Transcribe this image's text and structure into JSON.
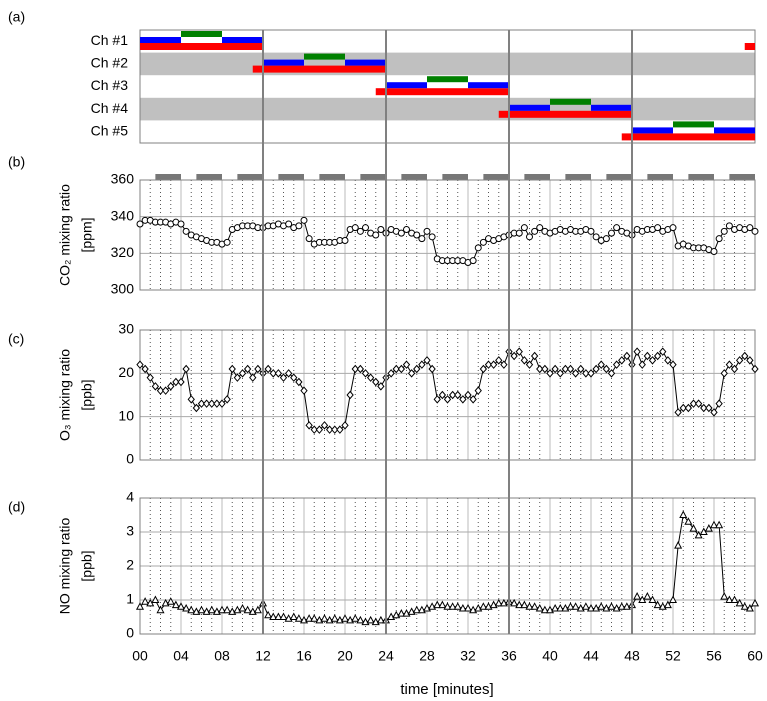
{
  "schedule": {
    "label": "(a)",
    "channels": [
      "Ch #1",
      "Ch #2",
      "Ch #3",
      "Ch #4",
      "Ch #5"
    ],
    "block_start": [
      0,
      12,
      24,
      36,
      48
    ],
    "phases": [
      {
        "color": "#ff0000",
        "from": 0,
        "to": 12,
        "level": "bottom"
      },
      {
        "color": "#0000ff",
        "from": 0,
        "to": 4,
        "level": "middle"
      },
      {
        "color": "#008000",
        "from": 4,
        "to": 8,
        "level": "top"
      },
      {
        "color": "#0000ff",
        "from": 8,
        "to": 12,
        "level": "middle"
      }
    ],
    "lead_in": [
      [
        59,
        60
      ],
      [
        11,
        12
      ],
      [
        23,
        24
      ],
      [
        35,
        36
      ],
      [
        47,
        48
      ]
    ],
    "lead_in_color": "#ff0000",
    "sampling": {
      "period": 4,
      "from": 1.5,
      "to": 4,
      "color": "#777777"
    }
  },
  "chart_data": {
    "type": "line",
    "xlabel": "time [minutes]",
    "xlim": [
      0,
      60
    ],
    "xticks": [
      {
        "value": 0,
        "label": "00"
      },
      {
        "value": 4,
        "label": "04"
      },
      {
        "value": 8,
        "label": "08"
      },
      12,
      16,
      20,
      24,
      28,
      32,
      36,
      40,
      44,
      48,
      52,
      56,
      60
    ],
    "grid": true,
    "x": [
      0,
      0.5,
      1,
      1.5,
      2,
      2.5,
      3,
      3.5,
      4,
      4.5,
      5,
      5.5,
      6,
      6.5,
      7,
      7.5,
      8,
      8.5,
      9,
      9.5,
      10,
      10.5,
      11,
      11.5,
      12,
      12.5,
      13,
      13.5,
      14,
      14.5,
      15,
      15.5,
      16,
      16.5,
      17,
      17.5,
      18,
      18.5,
      19,
      19.5,
      20,
      20.5,
      21,
      21.5,
      22,
      22.5,
      23,
      23.5,
      24,
      24.5,
      25,
      25.5,
      26,
      26.5,
      27,
      27.5,
      28,
      28.5,
      29,
      29.5,
      30,
      30.5,
      31,
      31.5,
      32,
      32.5,
      33,
      33.5,
      34,
      34.5,
      35,
      35.5,
      36,
      36.5,
      37,
      37.5,
      38,
      38.5,
      39,
      39.5,
      40,
      40.5,
      41,
      41.5,
      42,
      42.5,
      43,
      43.5,
      44,
      44.5,
      45,
      45.5,
      46,
      46.5,
      47,
      47.5,
      48,
      48.5,
      49,
      49.5,
      50,
      50.5,
      51,
      51.5,
      52,
      52.5,
      53,
      53.5,
      54,
      54.5,
      55,
      55.5,
      56,
      56.5,
      57,
      57.5,
      58,
      58.5,
      59,
      59.5,
      60
    ],
    "panels": [
      {
        "label": "(b)",
        "ylabel": "CO₂ mixing ratio",
        "yunit": "[ppm]",
        "ylim": [
          300,
          360
        ],
        "yticks": [
          300,
          320,
          340,
          360
        ],
        "marker": "circle",
        "color": "#000000",
        "values": [
          336,
          338,
          338,
          337,
          337,
          337,
          336,
          337,
          336,
          332,
          330,
          329,
          328,
          327,
          326,
          326,
          325,
          326,
          333,
          334,
          335,
          335,
          335,
          334,
          334,
          335,
          335,
          336,
          335,
          336,
          334,
          335,
          338,
          328,
          325,
          326,
          326,
          326,
          326,
          327,
          327,
          333,
          334,
          332,
          334,
          331,
          330,
          333,
          331,
          333,
          332,
          331,
          333,
          331,
          330,
          328,
          332,
          329,
          317,
          316,
          316,
          316,
          316,
          316,
          315,
          316,
          323,
          326,
          328,
          327,
          328,
          329,
          330,
          331,
          331,
          334,
          329,
          332,
          334,
          332,
          331,
          332,
          333,
          332,
          333,
          332,
          332,
          333,
          332,
          329,
          327,
          328,
          331,
          334,
          332,
          331,
          330,
          333,
          332,
          333,
          333,
          334,
          332,
          333,
          334,
          324,
          325,
          324,
          323,
          323,
          323,
          322,
          321,
          328,
          332,
          335,
          333,
          334,
          333,
          334,
          332
        ]
      },
      {
        "label": "(c)",
        "ylabel": "O₃ mixing ratio",
        "yunit": "[ppb]",
        "ylim": [
          0,
          30
        ],
        "yticks": [
          0,
          10,
          20,
          30
        ],
        "marker": "diamond",
        "color": "#000000",
        "values": [
          22,
          21,
          19,
          17,
          16,
          16,
          17,
          18,
          18,
          21,
          14,
          12,
          13,
          13,
          13,
          13,
          13,
          14,
          21,
          19,
          20,
          21,
          19,
          21,
          20,
          21,
          20,
          20,
          19,
          20,
          19,
          18,
          16,
          8,
          7,
          7,
          8,
          7,
          7,
          7,
          8,
          15,
          21,
          21,
          20,
          19,
          18,
          17,
          19,
          20,
          21,
          21,
          22,
          20,
          21,
          22,
          23,
          21,
          14,
          15,
          14,
          15,
          15,
          14,
          15,
          14,
          16,
          21,
          22,
          22,
          23,
          22,
          25,
          24,
          25,
          23,
          22,
          24,
          21,
          21,
          20,
          21,
          20,
          21,
          21,
          20,
          21,
          20,
          20,
          21,
          22,
          21,
          20,
          22,
          23,
          24,
          22,
          25,
          22,
          24,
          23,
          24,
          25,
          23,
          22,
          11,
          12,
          12,
          13,
          13,
          12,
          12,
          11,
          13,
          20,
          22,
          21,
          23,
          24,
          23,
          21
        ]
      },
      {
        "label": "(d)",
        "ylabel": "NO mixing ratio",
        "yunit": "[ppb]",
        "ylim": [
          0,
          4
        ],
        "yticks": [
          0,
          1,
          2,
          3,
          4
        ],
        "marker": "triangle",
        "color": "#000000",
        "values": [
          0.8,
          0.95,
          0.9,
          1.0,
          0.7,
          0.9,
          0.95,
          0.85,
          0.8,
          0.75,
          0.7,
          0.65,
          0.7,
          0.65,
          0.7,
          0.65,
          0.7,
          0.7,
          0.65,
          0.7,
          0.75,
          0.7,
          0.65,
          0.7,
          0.9,
          0.55,
          0.5,
          0.5,
          0.5,
          0.45,
          0.5,
          0.45,
          0.4,
          0.45,
          0.45,
          0.4,
          0.45,
          0.4,
          0.45,
          0.4,
          0.45,
          0.4,
          0.45,
          0.4,
          0.35,
          0.4,
          0.35,
          0.4,
          0.4,
          0.5,
          0.55,
          0.6,
          0.6,
          0.65,
          0.7,
          0.7,
          0.75,
          0.8,
          0.85,
          0.85,
          0.8,
          0.8,
          0.8,
          0.75,
          0.75,
          0.7,
          0.75,
          0.8,
          0.8,
          0.85,
          0.9,
          0.9,
          0.95,
          0.9,
          0.85,
          0.85,
          0.8,
          0.8,
          0.75,
          0.7,
          0.7,
          0.75,
          0.75,
          0.75,
          0.8,
          0.8,
          0.75,
          0.8,
          0.75,
          0.75,
          0.8,
          0.75,
          0.8,
          0.75,
          0.8,
          0.8,
          0.85,
          1.1,
          1.0,
          1.1,
          1.0,
          0.85,
          0.8,
          0.85,
          1.0,
          2.6,
          3.5,
          3.3,
          3.1,
          2.9,
          3.0,
          3.1,
          3.2,
          3.2,
          1.1,
          1.0,
          1.0,
          0.9,
          0.8,
          0.75,
          0.9
        ]
      }
    ]
  }
}
